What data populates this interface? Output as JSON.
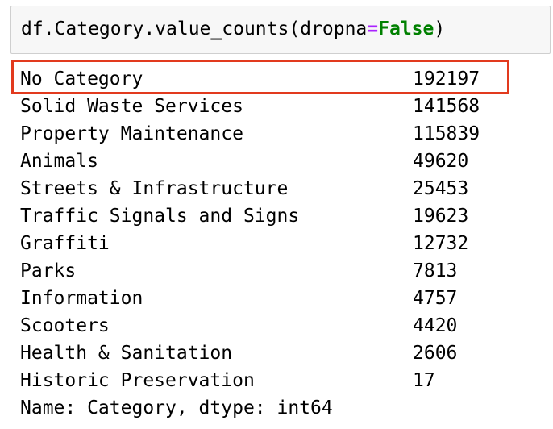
{
  "code_cell": {
    "prefix": "df.Category.value_counts(dropna",
    "operator": "=",
    "keyword": "False",
    "suffix": ")"
  },
  "output": {
    "rows": [
      {
        "label": "No Category",
        "value": "192197"
      },
      {
        "label": "Solid Waste Services",
        "value": "141568"
      },
      {
        "label": "Property Maintenance",
        "value": "115839"
      },
      {
        "label": "Animals",
        "value": "49620"
      },
      {
        "label": "Streets & Infrastructure",
        "value": "25453"
      },
      {
        "label": "Traffic Signals and Signs",
        "value": "19623"
      },
      {
        "label": "Graffiti",
        "value": "12732"
      },
      {
        "label": "Parks",
        "value": "7813"
      },
      {
        "label": "Information",
        "value": "4757"
      },
      {
        "label": "Scooters",
        "value": "4420"
      },
      {
        "label": "Health & Sanitation",
        "value": "2606"
      },
      {
        "label": "Historic Preservation",
        "value": "17"
      }
    ],
    "footer": "Name: Category, dtype: int64"
  },
  "highlight": {
    "color": "#e23a1e",
    "row_index": 0
  }
}
